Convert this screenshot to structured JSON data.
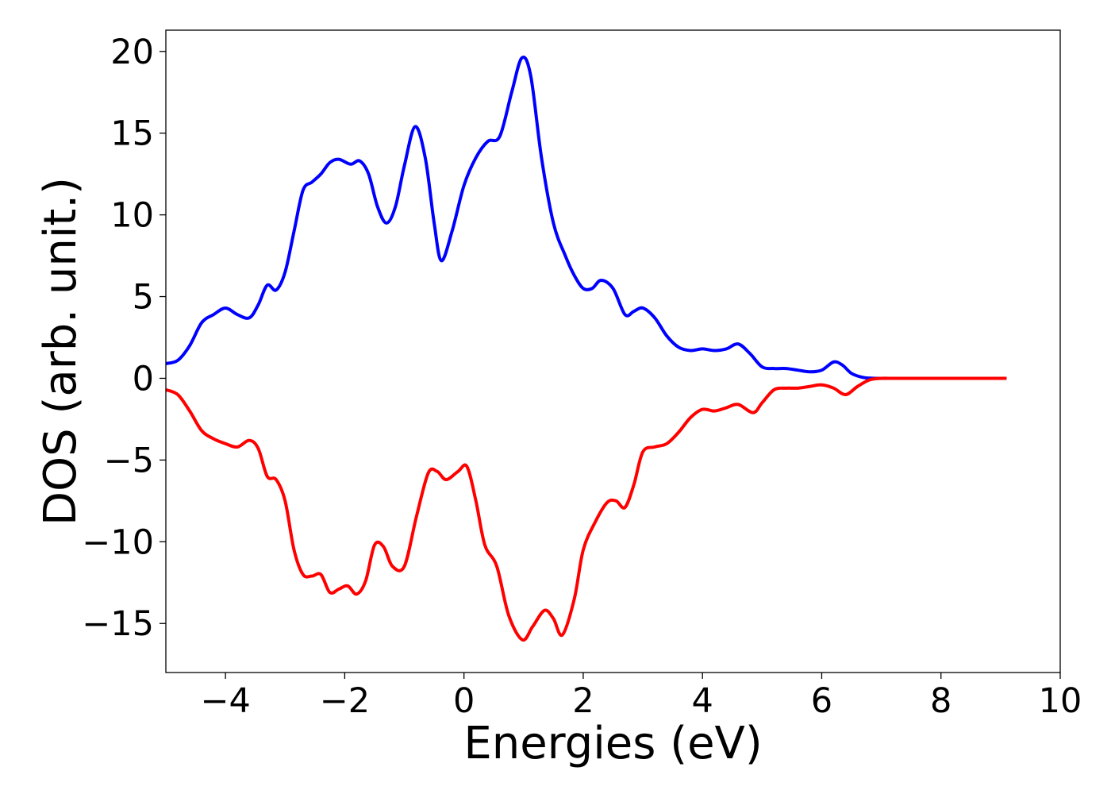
{
  "chart_data": {
    "type": "line",
    "title": "",
    "xlabel": "Energies (eV)",
    "ylabel": "DOS (arb. unit.)",
    "xlim": [
      -5,
      10
    ],
    "ylim": [
      -18,
      21.3
    ],
    "x_ticks": [
      -4,
      -2,
      0,
      2,
      4,
      6,
      8,
      10
    ],
    "y_ticks": [
      -15,
      -10,
      -5,
      0,
      5,
      10,
      15,
      20
    ],
    "x_tick_labels": [
      "−4",
      "−2",
      "0",
      "2",
      "4",
      "6",
      "8",
      "10"
    ],
    "y_tick_labels": [
      "−15",
      "−10",
      "−5",
      "0",
      "5",
      "10",
      "15",
      "20"
    ],
    "grid": false,
    "legend": "none",
    "series": [
      {
        "color": "#0000ff",
        "points": [
          [
            -5.0,
            0.9
          ],
          [
            -4.8,
            1.1
          ],
          [
            -4.6,
            2.0
          ],
          [
            -4.4,
            3.4
          ],
          [
            -4.2,
            3.9
          ],
          [
            -4.0,
            4.3
          ],
          [
            -3.8,
            3.9
          ],
          [
            -3.6,
            3.7
          ],
          [
            -3.45,
            4.5
          ],
          [
            -3.3,
            5.7
          ],
          [
            -3.15,
            5.4
          ],
          [
            -3.0,
            6.5
          ],
          [
            -2.85,
            9.0
          ],
          [
            -2.7,
            11.5
          ],
          [
            -2.55,
            12.0
          ],
          [
            -2.4,
            12.5
          ],
          [
            -2.25,
            13.2
          ],
          [
            -2.1,
            13.4
          ],
          [
            -1.9,
            13.1
          ],
          [
            -1.75,
            13.3
          ],
          [
            -1.6,
            12.5
          ],
          [
            -1.45,
            10.5
          ],
          [
            -1.3,
            9.5
          ],
          [
            -1.15,
            10.5
          ],
          [
            -1.0,
            13.0
          ],
          [
            -0.82,
            15.4
          ],
          [
            -0.65,
            13.5
          ],
          [
            -0.5,
            9.5
          ],
          [
            -0.38,
            7.2
          ],
          [
            -0.2,
            9.0
          ],
          [
            0.0,
            11.8
          ],
          [
            0.2,
            13.5
          ],
          [
            0.4,
            14.5
          ],
          [
            0.6,
            14.8
          ],
          [
            0.8,
            17.5
          ],
          [
            0.97,
            19.6
          ],
          [
            1.12,
            18.5
          ],
          [
            1.3,
            13.5
          ],
          [
            1.5,
            9.5
          ],
          [
            1.7,
            7.5
          ],
          [
            1.85,
            6.3
          ],
          [
            2.0,
            5.5
          ],
          [
            2.15,
            5.5
          ],
          [
            2.3,
            6.0
          ],
          [
            2.5,
            5.5
          ],
          [
            2.7,
            3.9
          ],
          [
            2.85,
            4.1
          ],
          [
            3.0,
            4.3
          ],
          [
            3.2,
            3.7
          ],
          [
            3.4,
            2.6
          ],
          [
            3.6,
            1.9
          ],
          [
            3.8,
            1.7
          ],
          [
            4.0,
            1.8
          ],
          [
            4.2,
            1.7
          ],
          [
            4.4,
            1.8
          ],
          [
            4.6,
            2.1
          ],
          [
            4.8,
            1.5
          ],
          [
            5.0,
            0.7
          ],
          [
            5.2,
            0.6
          ],
          [
            5.4,
            0.6
          ],
          [
            5.6,
            0.5
          ],
          [
            5.8,
            0.4
          ],
          [
            6.0,
            0.5
          ],
          [
            6.2,
            1.0
          ],
          [
            6.35,
            0.8
          ],
          [
            6.5,
            0.3
          ],
          [
            6.7,
            0.05
          ],
          [
            6.9,
            0.0
          ],
          [
            7.2,
            0.0
          ],
          [
            8.0,
            0.0
          ],
          [
            9.1,
            0.0
          ]
        ]
      },
      {
        "color": "#ff0000",
        "points": [
          [
            -5.0,
            -0.7
          ],
          [
            -4.8,
            -1.0
          ],
          [
            -4.6,
            -2.0
          ],
          [
            -4.4,
            -3.2
          ],
          [
            -4.2,
            -3.7
          ],
          [
            -4.0,
            -4.0
          ],
          [
            -3.8,
            -4.2
          ],
          [
            -3.6,
            -3.8
          ],
          [
            -3.45,
            -4.3
          ],
          [
            -3.3,
            -6.0
          ],
          [
            -3.15,
            -6.2
          ],
          [
            -3.0,
            -7.5
          ],
          [
            -2.85,
            -10.5
          ],
          [
            -2.7,
            -12.0
          ],
          [
            -2.55,
            -12.1
          ],
          [
            -2.4,
            -12.0
          ],
          [
            -2.25,
            -13.1
          ],
          [
            -2.1,
            -12.9
          ],
          [
            -1.95,
            -12.7
          ],
          [
            -1.8,
            -13.2
          ],
          [
            -1.65,
            -12.4
          ],
          [
            -1.5,
            -10.2
          ],
          [
            -1.35,
            -10.3
          ],
          [
            -1.2,
            -11.5
          ],
          [
            -1.0,
            -11.5
          ],
          [
            -0.8,
            -8.5
          ],
          [
            -0.6,
            -5.8
          ],
          [
            -0.45,
            -5.7
          ],
          [
            -0.3,
            -6.2
          ],
          [
            -0.1,
            -5.7
          ],
          [
            0.05,
            -5.4
          ],
          [
            0.2,
            -7.5
          ],
          [
            0.35,
            -10.2
          ],
          [
            0.55,
            -11.5
          ],
          [
            0.75,
            -14.5
          ],
          [
            0.98,
            -16.0
          ],
          [
            1.15,
            -15.2
          ],
          [
            1.35,
            -14.2
          ],
          [
            1.5,
            -14.7
          ],
          [
            1.65,
            -15.7
          ],
          [
            1.85,
            -13.5
          ],
          [
            2.0,
            -10.5
          ],
          [
            2.2,
            -8.8
          ],
          [
            2.4,
            -7.6
          ],
          [
            2.55,
            -7.5
          ],
          [
            2.7,
            -7.9
          ],
          [
            2.85,
            -6.5
          ],
          [
            3.0,
            -4.5
          ],
          [
            3.2,
            -4.2
          ],
          [
            3.4,
            -4.0
          ],
          [
            3.6,
            -3.3
          ],
          [
            3.8,
            -2.4
          ],
          [
            4.0,
            -1.9
          ],
          [
            4.2,
            -2.0
          ],
          [
            4.4,
            -1.8
          ],
          [
            4.6,
            -1.6
          ],
          [
            4.85,
            -2.1
          ],
          [
            5.0,
            -1.5
          ],
          [
            5.2,
            -0.7
          ],
          [
            5.4,
            -0.6
          ],
          [
            5.6,
            -0.6
          ],
          [
            5.8,
            -0.5
          ],
          [
            6.0,
            -0.4
          ],
          [
            6.2,
            -0.6
          ],
          [
            6.4,
            -1.0
          ],
          [
            6.6,
            -0.5
          ],
          [
            6.8,
            -0.1
          ],
          [
            7.0,
            0.0
          ],
          [
            7.2,
            0.0
          ],
          [
            8.0,
            0.0
          ],
          [
            9.1,
            0.0
          ]
        ]
      }
    ]
  }
}
